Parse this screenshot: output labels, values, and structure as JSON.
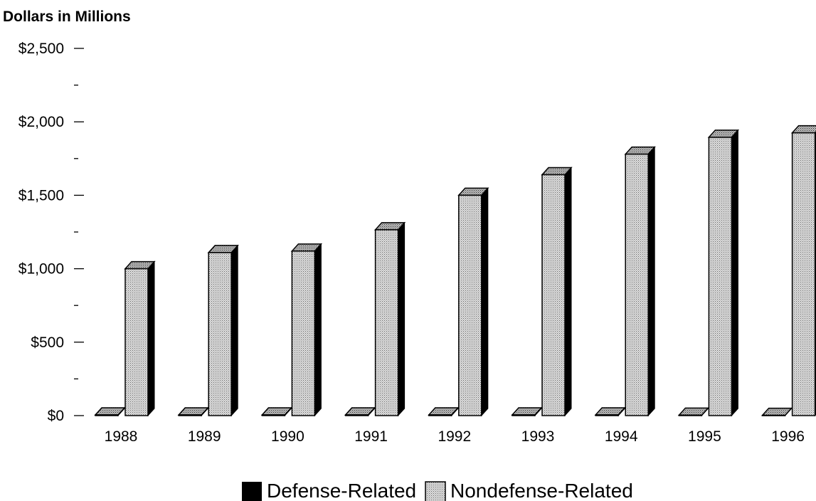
{
  "chart_data": {
    "type": "bar",
    "ylabel": "Dollars in Millions",
    "xlabel": "",
    "categories": [
      "1988",
      "1989",
      "1990",
      "1991",
      "1992",
      "1993",
      "1994",
      "1995",
      "1996"
    ],
    "series": [
      {
        "name": "Defense-Related",
        "values": [
          5,
          5,
          5,
          5,
          5,
          5,
          5,
          3,
          2
        ]
      },
      {
        "name": "Nondefense-Related",
        "values": [
          1000,
          1110,
          1120,
          1265,
          1500,
          1640,
          1780,
          1895,
          1925
        ]
      }
    ],
    "ylim": [
      0,
      2500
    ],
    "yticks": [
      {
        "value": 0,
        "label": "$0"
      },
      {
        "value": 500,
        "label": "$500"
      },
      {
        "value": 1000,
        "label": "$1,000"
      },
      {
        "value": 1500,
        "label": "$1,500"
      },
      {
        "value": 2000,
        "label": "$2,000"
      },
      {
        "value": 2500,
        "label": "$2,500"
      }
    ],
    "minor_ticks": [
      250,
      750,
      1250,
      1750,
      2250
    ],
    "legend_position": "bottom-center",
    "grid": false,
    "colors": {
      "defense": "#000000",
      "nondefense_fill": "#cccccc",
      "nondefense_dots": "#777777",
      "side": "#000000"
    }
  }
}
